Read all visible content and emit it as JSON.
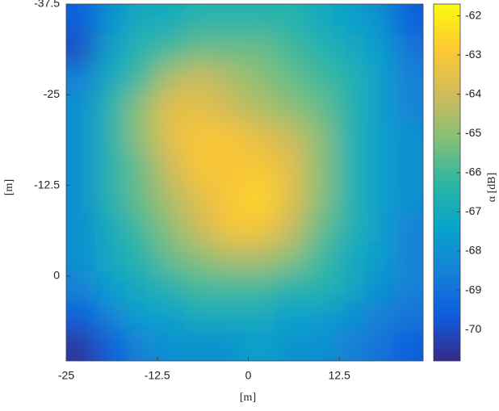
{
  "chart_data": {
    "type": "heatmap",
    "xlabel": "[m]",
    "ylabel": "[m]",
    "colorbar_label": "α [dB]",
    "xlim": [
      -25,
      24
    ],
    "ylim": [
      -37.5,
      11.7
    ],
    "y_reversed": true,
    "xticks": [
      -25,
      -12.5,
      0,
      12.5
    ],
    "yticks": [
      -37.5,
      -25,
      -12.5,
      0
    ],
    "clim": [
      -70.8,
      -61.7
    ],
    "cticks": [
      -62,
      -63,
      -64,
      -65,
      -66,
      -67,
      -68,
      -69,
      -70
    ],
    "colormap": [
      "#352a87",
      "#0f5cdd",
      "#1481d6",
      "#06a4ca",
      "#2eb7a4",
      "#87bf77",
      "#d1bb59",
      "#fec832",
      "#f9fb0e"
    ],
    "values": [
      [
        -69.5,
        -68,
        -67,
        -67,
        -66.5,
        -66.5,
        -66.5,
        -66.5,
        -67,
        -67.5,
        -68,
        -69.5
      ],
      [
        -70,
        -67.5,
        -66.5,
        -66,
        -65.5,
        -65.5,
        -65.5,
        -66,
        -66.5,
        -67,
        -67.5,
        -69
      ],
      [
        -68.5,
        -67,
        -66,
        -64.5,
        -64,
        -64.5,
        -65,
        -65.5,
        -66,
        -66.5,
        -67.5,
        -68.5
      ],
      [
        -68,
        -66.5,
        -65,
        -63.5,
        -63.5,
        -64,
        -64.5,
        -65,
        -65.5,
        -66.5,
        -67.5,
        -68.5
      ],
      [
        -68,
        -66.5,
        -65,
        -63.5,
        -63,
        -63,
        -63.5,
        -64,
        -65,
        -66.5,
        -67.5,
        -68
      ],
      [
        -68,
        -66.5,
        -65.5,
        -64,
        -63,
        -63,
        -63,
        -63.5,
        -65,
        -66.5,
        -67.5,
        -68
      ],
      [
        -68,
        -66.5,
        -65.5,
        -64.5,
        -63.5,
        -63,
        -62.5,
        -63.5,
        -65,
        -66.5,
        -67.5,
        -68
      ],
      [
        -68,
        -67,
        -66,
        -65,
        -64,
        -63,
        -63,
        -64,
        -65.5,
        -66.5,
        -67.5,
        -68.5
      ],
      [
        -68,
        -67,
        -66.5,
        -65.5,
        -65,
        -64.5,
        -64.5,
        -65,
        -66,
        -67,
        -67.5,
        -68.5
      ],
      [
        -68.5,
        -67.5,
        -67,
        -66.5,
        -66,
        -66,
        -66,
        -66.5,
        -66.5,
        -67,
        -68,
        -68.5
      ],
      [
        -69.5,
        -68.5,
        -67.5,
        -67.5,
        -67,
        -67,
        -67,
        -67.5,
        -67.5,
        -68,
        -68.5,
        -69
      ],
      [
        -70.5,
        -69.5,
        -68.5,
        -68,
        -68,
        -68,
        -67.5,
        -68,
        -68,
        -68.5,
        -69,
        -69.5
      ]
    ]
  }
}
